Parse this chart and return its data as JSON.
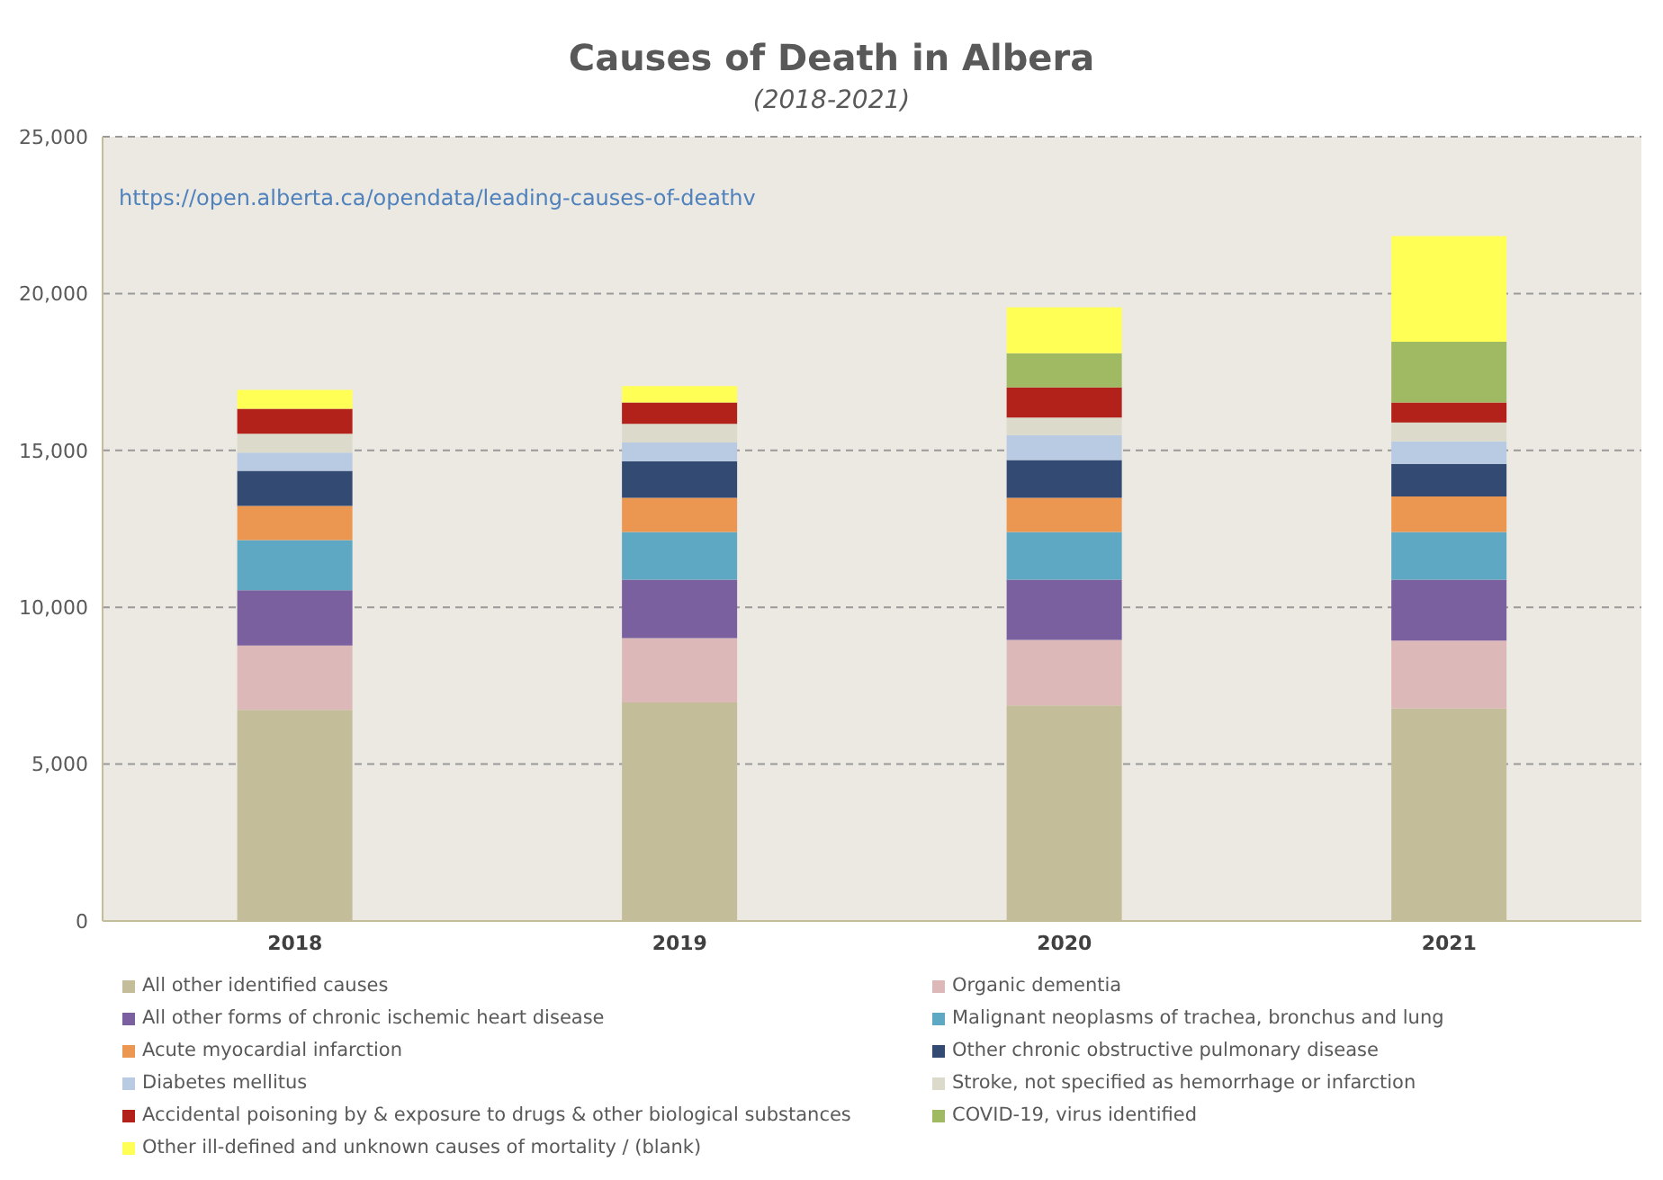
{
  "chart_data": {
    "type": "bar",
    "title": "Causes of Death in Albera",
    "subtitle": "(2018-2021)",
    "annotations": [
      "https://open.alberta.ca/opendata/leading-causes-of-deathv"
    ],
    "categories": [
      "2018",
      "2019",
      "2020",
      "2021"
    ],
    "stacked": true,
    "ylim": [
      0,
      25000
    ],
    "yticks": [
      {
        "value": 0,
        "label": "0"
      },
      {
        "value": 5000,
        "label": "5,000"
      },
      {
        "value": 10000,
        "label": "10,000"
      },
      {
        "value": 15000,
        "label": "15,000"
      },
      {
        "value": 20000,
        "label": "20,000"
      },
      {
        "value": 25000,
        "label": "25,000"
      }
    ],
    "grid": "y",
    "legend": "bottom",
    "series": [
      {
        "name": "All other identified causes",
        "color": "#c4bd99",
        "values": [
          6730,
          6970,
          6870,
          6770
        ]
      },
      {
        "name": "Organic dementia",
        "color": "#ddb8b8",
        "values": [
          2050,
          2050,
          2090,
          2170
        ]
      },
      {
        "name": "All other forms of chronic ischemic heart disease",
        "color": "#7b60a0",
        "values": [
          1760,
          1860,
          1920,
          1940
        ]
      },
      {
        "name": "Malignant neoplasms of trachea, bronchus and lung",
        "color": "#5fa8c4",
        "values": [
          1600,
          1520,
          1520,
          1520
        ]
      },
      {
        "name": "Acute myocardial infarction",
        "color": "#eb9752",
        "values": [
          1090,
          1090,
          1090,
          1130
        ]
      },
      {
        "name": "Other chronic obstructive pulmonary disease",
        "color": "#334a73",
        "values": [
          1120,
          1160,
          1200,
          1040
        ]
      },
      {
        "name": "Diabetes mellitus",
        "color": "#b9cbe3",
        "values": [
          580,
          600,
          800,
          720
        ]
      },
      {
        "name": "Stroke, not specified as hemorrhage or infarction",
        "color": "#dcdacb",
        "values": [
          600,
          600,
          560,
          600
        ]
      },
      {
        "name": "Accidental poisoning by & exposure to drugs & other biological substances",
        "color": "#b2221b",
        "values": [
          800,
          680,
          960,
          640
        ]
      },
      {
        "name": "COVID-19, virus identified",
        "color": "#9fba62",
        "values": [
          0,
          0,
          1090,
          1930
        ]
      },
      {
        "name": "Other ill-defined and unknown causes of mortality / (blank)",
        "color": "#ffff55",
        "values": [
          600,
          520,
          1460,
          3370
        ]
      }
    ]
  }
}
